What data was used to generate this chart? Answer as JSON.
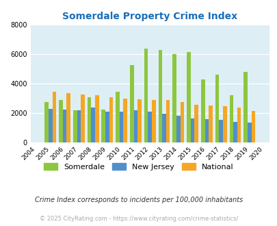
{
  "title": "Somerdale Property Crime Index",
  "title_color": "#1a6fbb",
  "years": [
    2004,
    2005,
    2006,
    2007,
    2008,
    2009,
    2010,
    2011,
    2012,
    2013,
    2014,
    2015,
    2016,
    2017,
    2018,
    2019,
    2020
  ],
  "somerdale": [
    0,
    2750,
    2900,
    2200,
    3050,
    2250,
    3450,
    5250,
    6400,
    6300,
    6000,
    6150,
    4300,
    4600,
    3200,
    4800,
    0
  ],
  "new_jersey": [
    0,
    2300,
    2250,
    2200,
    2350,
    2100,
    2100,
    2200,
    2100,
    1950,
    1800,
    1650,
    1580,
    1530,
    1380,
    1350,
    0
  ],
  "national": [
    0,
    3450,
    3350,
    3280,
    3220,
    3050,
    2970,
    2920,
    2900,
    2900,
    2750,
    2550,
    2500,
    2480,
    2350,
    2150,
    0
  ],
  "somerdale_color": "#8dc63f",
  "nj_color": "#4f8fcc",
  "national_color": "#f5a623",
  "bg_color": "#ddeef5",
  "ylim": [
    0,
    8000
  ],
  "yticks": [
    0,
    2000,
    4000,
    6000,
    8000
  ],
  "legend_labels": [
    "Somerdale",
    "New Jersey",
    "National"
  ],
  "footnote1": "Crime Index corresponds to incidents per 100,000 inhabitants",
  "footnote2": "© 2025 CityRating.com - https://www.cityrating.com/crime-statistics/",
  "footnote1_color": "#333333",
  "footnote2_color": "#aaaaaa",
  "bar_width": 0.27
}
